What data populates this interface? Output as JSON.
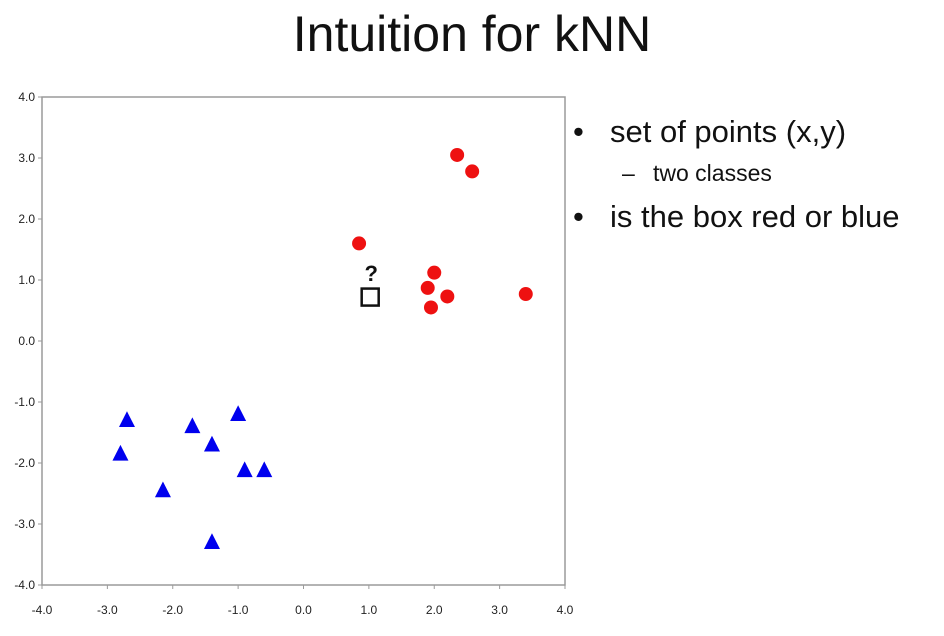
{
  "slide": {
    "title": "Intuition for kNN",
    "bullets": [
      {
        "text": "set of points (x,y)",
        "sub": "two classes",
        "sub_marker": "–"
      },
      {
        "text": "is the box red or blue"
      }
    ]
  },
  "chart_data": {
    "type": "scatter",
    "xlim": [
      -4.0,
      4.0
    ],
    "ylim": [
      -4.0,
      4.0
    ],
    "xticks": [
      "-4.0",
      "-3.0",
      "-2.0",
      "-1.0",
      "0.0",
      "1.0",
      "2.0",
      "3.0",
      "4.0"
    ],
    "yticks": [
      "-4.0",
      "-3.0",
      "-2.0",
      "-1.0",
      "0.0",
      "1.0",
      "2.0",
      "3.0",
      "4.0"
    ],
    "grid": false,
    "legend": false,
    "series": [
      {
        "class": "red",
        "marker": "circle",
        "color": "#ee1111",
        "points": [
          [
            2.35,
            3.05
          ],
          [
            2.58,
            2.78
          ],
          [
            0.85,
            1.6
          ],
          [
            2.0,
            1.12
          ],
          [
            1.9,
            0.87
          ],
          [
            2.2,
            0.73
          ],
          [
            1.95,
            0.55
          ],
          [
            3.4,
            0.77
          ]
        ]
      },
      {
        "class": "blue",
        "marker": "triangle",
        "color": "#0000ee",
        "points": [
          [
            -2.7,
            -1.3
          ],
          [
            -2.8,
            -1.85
          ],
          [
            -1.7,
            -1.4
          ],
          [
            -1.4,
            -1.7
          ],
          [
            -1.0,
            -1.2
          ],
          [
            -0.9,
            -2.12
          ],
          [
            -0.6,
            -2.12
          ],
          [
            -2.15,
            -2.45
          ],
          [
            -1.4,
            -3.3
          ]
        ]
      }
    ],
    "query": {
      "marker": "square",
      "x": 1.02,
      "y": 0.72,
      "label": "?",
      "color": "#111111"
    }
  }
}
